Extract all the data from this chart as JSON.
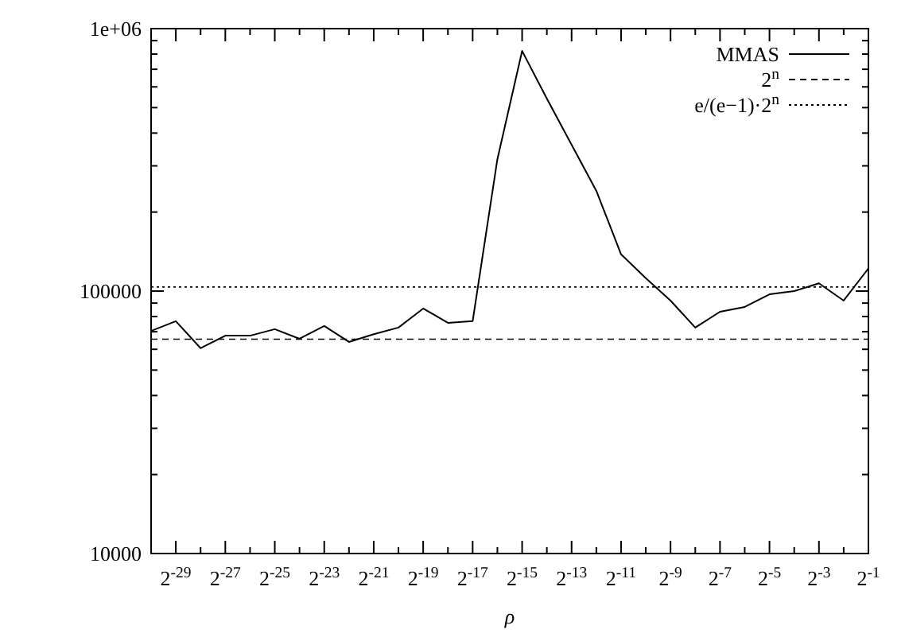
{
  "chart_data": {
    "type": "line",
    "xlabel": "ρ",
    "log": "y",
    "legend": "top right",
    "grid": false,
    "categories": [
      null,
      "2$^{-29}$",
      null,
      "2$^{-27}$",
      null,
      "2$^{-25}$",
      null,
      "2$^{-23}$",
      null,
      "2$^{-21}$",
      null,
      "2$^{-19}$",
      null,
      "2$^{-17}$",
      null,
      "2$^{-15}$",
      null,
      "2$^{-13}$",
      null,
      "2$^{-11}$",
      null,
      "2$^{-9}$",
      null,
      "2$^{-7}$",
      null,
      "2$^{-5}$",
      null,
      "2$^{-3}$",
      null,
      "2$^{-1}$"
    ],
    "ylim": [
      10000,
      1000000
    ],
    "yticks": [
      10000,
      100000,
      {
        "value": 1000000,
        "label": "1e+06"
      }
    ],
    "series": [
      {
        "name": "MMAS",
        "color": "#000000",
        "line_style": "solid",
        "values": [
          70500,
          76800,
          60600,
          67600,
          67600,
          71600,
          65800,
          73600,
          64000,
          68500,
          72600,
          85800,
          75700,
          76800,
          318000,
          822000,
          541000,
          361000,
          241000,
          138000,
          112000,
          92000,
          72600,
          83400,
          87000,
          97200,
          100000,
          107000,
          92000,
          122000
        ]
      }
    ],
    "ref_lines": [
      {
        "axis": "y",
        "value": 65536,
        "label": "2$^{n}$",
        "color": "#000000",
        "line_style": "dashed"
      },
      {
        "axis": "y",
        "value": 103675,
        "label": "e/(e−1)·2$^{n}$",
        "color": "#000000",
        "line_style": "dotted"
      }
    ]
  }
}
